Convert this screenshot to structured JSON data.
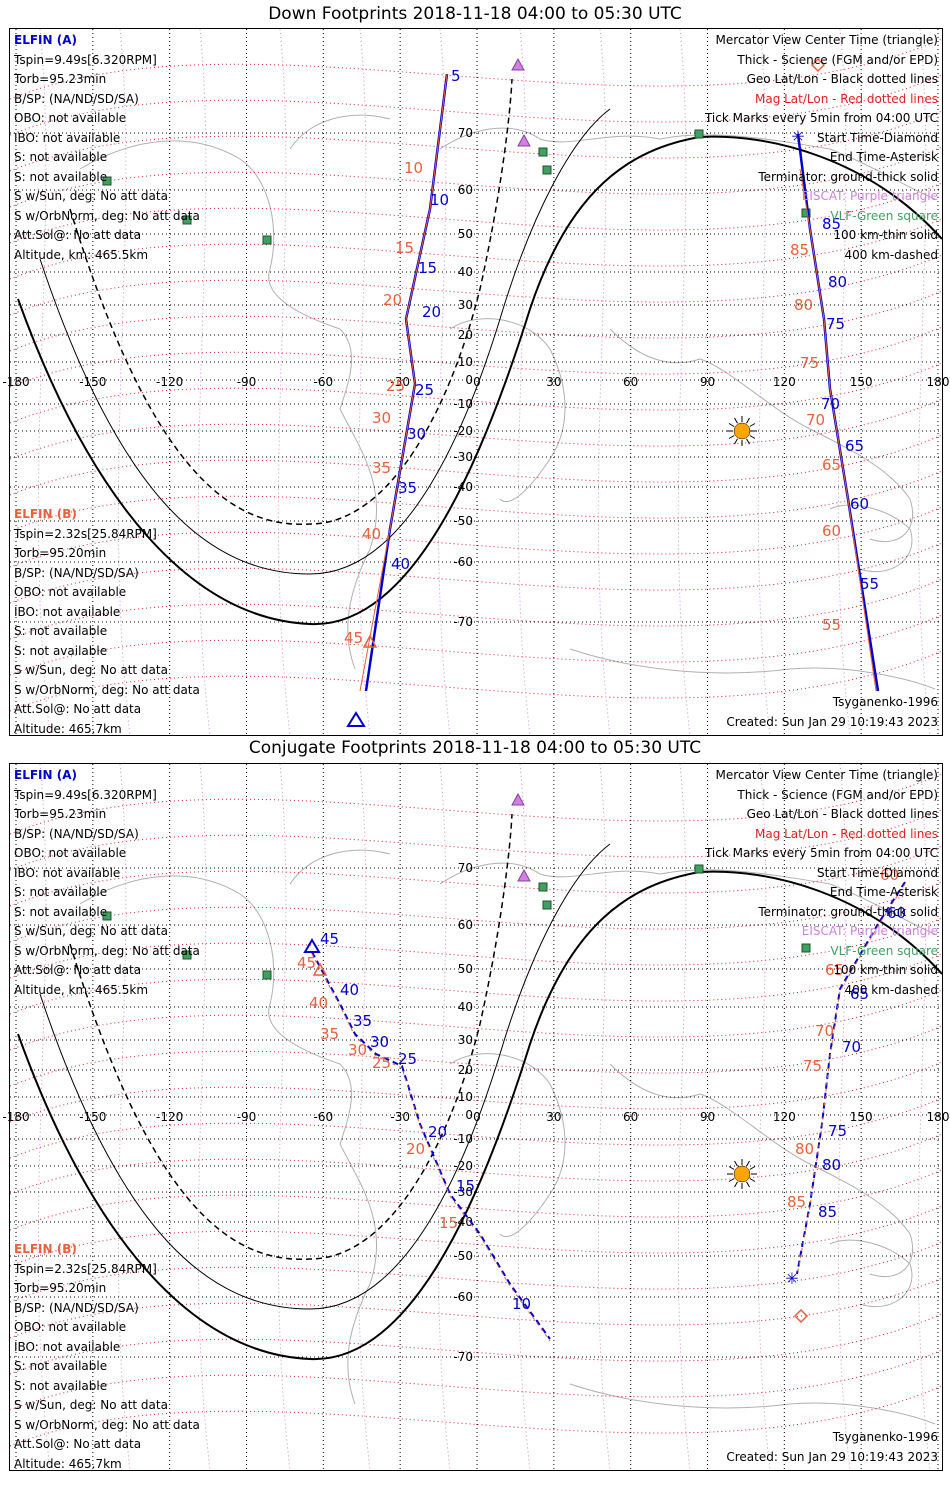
{
  "panels": [
    {
      "title": "Down Footprints 2018-11-18 04:00 to 05:30 UTC",
      "elfin_a": {
        "header": "ELFIN (A)",
        "lines": [
          "Tspin=9.49s[6.320RPM]",
          "Torb=95.23min",
          "B/SP: (NA/ND/SD/SA)",
          "OBO: not available",
          "IBO: not available",
          "S: not available",
          "S: not available",
          "S w/Sun, deg: No att data",
          "S w/OrbNorm, deg: No att data",
          "Att.Sol@: No att data",
          "Altitude, km: 465.5km"
        ]
      },
      "elfin_b": {
        "header": "ELFIN (B)",
        "lines": [
          "Tspin=2.32s[25.84RPM]",
          "Torb=95.20min",
          "B/SP: (NA/ND/SD/SA)",
          "OBO: not available",
          "IBO: not available",
          "S: not available",
          "S: not available",
          "S w/Sun, deg: No att data",
          "S w/OrbNorm, deg: No att data",
          "Att.Sol@: No att data",
          "Altitude: 465.7km"
        ]
      },
      "legend": [
        {
          "text": "Mercator View Center Time (triangle)",
          "color": "black"
        },
        {
          "text": "Thick - Science (FGM and/or EPD)",
          "color": "black"
        },
        {
          "text": "Geo Lat/Lon - Black dotted lines",
          "color": "black"
        },
        {
          "text": "Mag Lat/Lon - Red dotted lines",
          "color": "red"
        },
        {
          "text": "Tick Marks every 5min from 04:00 UTC",
          "color": "black"
        },
        {
          "text": "Start Time-Diamond",
          "color": "black"
        },
        {
          "text": "End Time-Asterisk",
          "color": "black"
        },
        {
          "text": "Terminator: ground-thick solid",
          "color": "black"
        },
        {
          "text": "EISCAT: Purple triangle",
          "color": "purple"
        },
        {
          "text": "VLF-Green square",
          "color": "green"
        },
        {
          "text": "100 km-thin solid",
          "color": "black"
        },
        {
          "text": "400 km-dashed",
          "color": "black"
        }
      ],
      "model": "Tsyganenko-1996",
      "created": "Created: Sun Jan 29 10:19:43 2023",
      "lon_labels": [
        "-180",
        "-150",
        "-120",
        "-90",
        "-60",
        "-30",
        "0",
        "30",
        "60",
        "90",
        "120",
        "150",
        "180"
      ],
      "lat_labels": [
        "70",
        "60",
        "50",
        "40",
        "30",
        "20",
        "10",
        "0",
        "-10",
        "-20",
        "-30",
        "-40",
        "-50",
        "-60",
        "-70"
      ],
      "track_a_labels": [
        "5",
        "10",
        "15",
        "20",
        "25",
        "30",
        "35",
        "40",
        "55",
        "60",
        "65",
        "70",
        "75",
        "80",
        "85"
      ],
      "track_b_labels": [
        "10",
        "15",
        "20",
        "25",
        "30",
        "35",
        "40",
        "45",
        "55",
        "60",
        "65",
        "70",
        "75",
        "80",
        "85"
      ]
    },
    {
      "title": "Conjugate Footprints 2018-11-18 04:00 to 05:30 UTC",
      "elfin_a": {
        "header": "ELFIN (A)",
        "lines": [
          "Tspin=9.49s[6.320RPM]",
          "Torb=95.23min",
          "B/SP: (NA/ND/SD/SA)",
          "OBO: not available",
          "IBO: not available",
          "S: not available",
          "S: not available",
          "S w/Sun, deg: No att data",
          "S w/OrbNorm, deg: No att data",
          "Att.Sol@: No att data",
          "Altitude, km: 465.5km"
        ]
      },
      "elfin_b": {
        "header": "ELFIN (B)",
        "lines": [
          "Tspin=2.32s[25.84RPM]",
          "Torb=95.20min",
          "B/SP: (NA/ND/SD/SA)",
          "OBO: not available",
          "IBO: not available",
          "S: not available",
          "S: not available",
          "S w/Sun, deg: No att data",
          "S w/OrbNorm, deg: No att data",
          "Att.Sol@: No att data",
          "Altitude: 465.7km"
        ]
      },
      "legend": [
        {
          "text": "Mercator View Center Time (triangle)",
          "color": "black"
        },
        {
          "text": "Thick - Science (FGM and/or EPD)",
          "color": "black"
        },
        {
          "text": "Geo Lat/Lon - Black dotted lines",
          "color": "black"
        },
        {
          "text": "Mag Lat/Lon - Red dotted lines",
          "color": "red"
        },
        {
          "text": "Tick Marks every 5min from 04:00 UTC",
          "color": "black"
        },
        {
          "text": "Start Time-Diamond",
          "color": "black"
        },
        {
          "text": "End Time-Asterisk",
          "color": "black"
        },
        {
          "text": "Terminator: ground-thick solid",
          "color": "black"
        },
        {
          "text": "EISCAT: Purple triangle",
          "color": "purple"
        },
        {
          "text": "VLF-Green square",
          "color": "green"
        },
        {
          "text": "100 km-thin solid",
          "color": "black"
        },
        {
          "text": "400 km-dashed",
          "color": "black"
        }
      ],
      "model": "Tsyganenko-1996",
      "created": "Created: Sun Jan 29 10:19:43 2023",
      "lon_labels": [
        "-180",
        "-150",
        "-120",
        "-90",
        "-60",
        "-30",
        "0",
        "30",
        "60",
        "90",
        "120",
        "150",
        "180"
      ],
      "lat_labels": [
        "70",
        "60",
        "50",
        "40",
        "30",
        "20",
        "10",
        "0",
        "-10",
        "-20",
        "-30",
        "-40",
        "-50",
        "-60",
        "-70"
      ],
      "track_a_labels": [
        "10",
        "15",
        "20",
        "25",
        "30",
        "35",
        "40",
        "45",
        "60",
        "65",
        "70",
        "75",
        "80",
        "85"
      ],
      "track_b_labels": [
        "15",
        "20",
        "25",
        "30",
        "35",
        "40",
        "45",
        "60",
        "65",
        "70",
        "75",
        "80",
        "85"
      ]
    }
  ],
  "colors": {
    "elfin_a": "#0000cc",
    "elfin_b": "#e8603c",
    "mag_grid": "#e02020",
    "geo_grid": "#000000",
    "eiscat": "#d080e0",
    "vlf": "#40a060",
    "sun": "#ffa500",
    "coast": "#b0b0b0"
  }
}
